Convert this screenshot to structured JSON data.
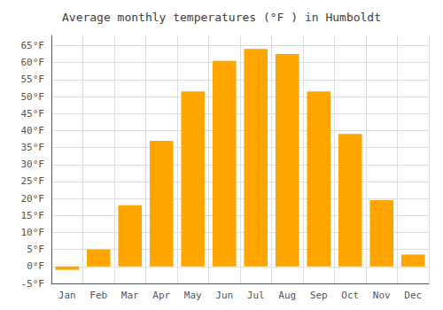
{
  "chart_data": {
    "type": "bar",
    "title": "Average monthly temperatures (°F ) in Humboldt",
    "categories": [
      "Jan",
      "Feb",
      "Mar",
      "Apr",
      "May",
      "Jun",
      "Jul",
      "Aug",
      "Sep",
      "Oct",
      "Nov",
      "Dec"
    ],
    "values": [
      -1,
      5,
      18,
      37,
      51.5,
      60.5,
      64,
      62.5,
      51.5,
      39,
      19.5,
      3.5
    ],
    "color": "#FFA500",
    "ylim": [
      -5,
      68
    ],
    "yticks": [
      {
        "value": -5,
        "label": "-5°F"
      },
      {
        "value": 0,
        "label": "0°F"
      },
      {
        "value": 5,
        "label": "5°F"
      },
      {
        "value": 10,
        "label": "10°F"
      },
      {
        "value": 15,
        "label": "15°F"
      },
      {
        "value": 20,
        "label": "20°F"
      },
      {
        "value": 25,
        "label": "25°F"
      },
      {
        "value": 30,
        "label": "30°F"
      },
      {
        "value": 35,
        "label": "35°F"
      },
      {
        "value": 40,
        "label": "40°F"
      },
      {
        "value": 45,
        "label": "45°F"
      },
      {
        "value": 50,
        "label": "50°F"
      },
      {
        "value": 55,
        "label": "55°F"
      },
      {
        "value": 60,
        "label": "60°F"
      },
      {
        "value": 65,
        "label": "65°F"
      }
    ],
    "grid": true
  }
}
